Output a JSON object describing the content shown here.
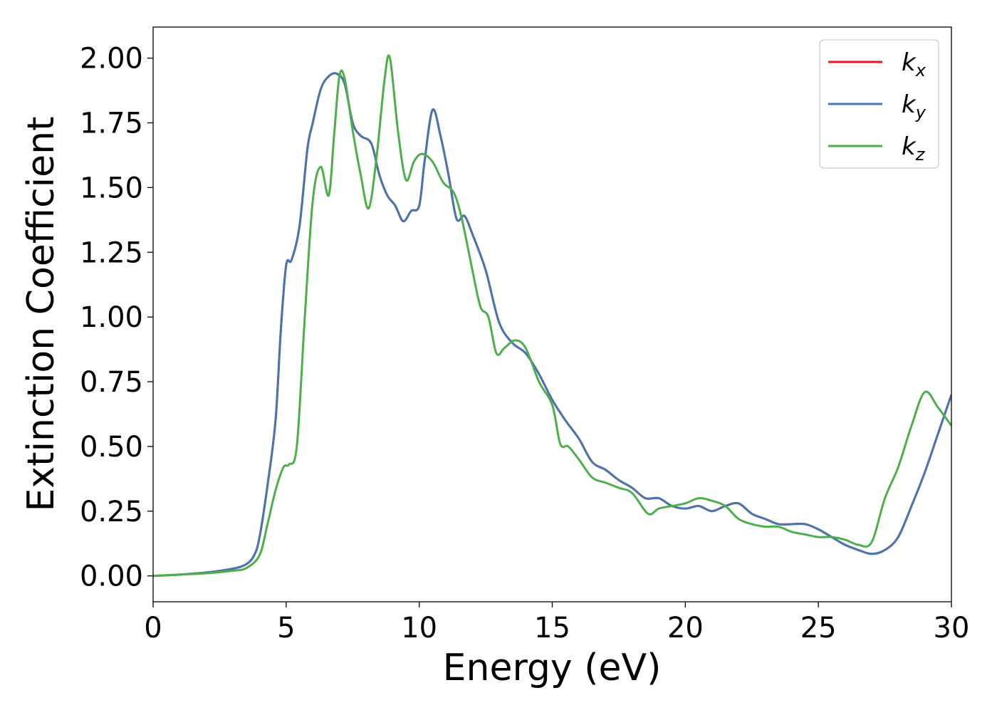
{
  "chart_data": {
    "type": "line",
    "title": "",
    "xlabel": "Energy (eV)",
    "ylabel": "Extinction Coefficient",
    "xlim": [
      0,
      30
    ],
    "ylim": [
      -0.1,
      2.12
    ],
    "x_ticks": [
      0,
      5,
      10,
      15,
      20,
      25,
      30
    ],
    "x_tick_labels": [
      "0",
      "5",
      "10",
      "15",
      "20",
      "25",
      "30"
    ],
    "y_ticks": [
      0,
      0.25,
      0.5,
      0.75,
      1.0,
      1.25,
      1.5,
      1.75,
      2.0
    ],
    "y_tick_labels": [
      "0.00",
      "0.25",
      "0.50",
      "0.75",
      "1.00",
      "1.25",
      "1.50",
      "1.75",
      "2.00"
    ],
    "grid": false,
    "legend_position": "top-right",
    "series": [
      {
        "name": "k",
        "subscript": "x",
        "color": "#e41a1c",
        "x": [
          0,
          1,
          2,
          3,
          3.5,
          3.8,
          4.0,
          4.3,
          4.6,
          4.8,
          5.0,
          5.2,
          5.5,
          5.8,
          6.0,
          6.3,
          6.6,
          6.9,
          7.2,
          7.5,
          7.8,
          8.2,
          8.5,
          8.8,
          9.1,
          9.4,
          9.7,
          10.0,
          10.2,
          10.5,
          10.8,
          11.1,
          11.4,
          11.7,
          12.0,
          12.5,
          13.0,
          13.5,
          14.0,
          14.5,
          15.0,
          15.5,
          16.0,
          16.5,
          17.0,
          17.5,
          18.0,
          18.5,
          19.0,
          19.5,
          20.0,
          20.5,
          21.0,
          21.5,
          22.0,
          22.5,
          23.0,
          23.5,
          24.0,
          24.5,
          25.0,
          25.5,
          26.0,
          26.5,
          27.0,
          27.5,
          28.0,
          28.5,
          29.0,
          29.5,
          30.0
        ],
        "y": [
          0,
          0.005,
          0.013,
          0.028,
          0.045,
          0.08,
          0.15,
          0.35,
          0.6,
          0.95,
          1.2,
          1.22,
          1.35,
          1.65,
          1.75,
          1.88,
          1.93,
          1.94,
          1.9,
          1.75,
          1.7,
          1.67,
          1.55,
          1.47,
          1.43,
          1.37,
          1.41,
          1.43,
          1.6,
          1.8,
          1.7,
          1.55,
          1.38,
          1.39,
          1.32,
          1.18,
          0.98,
          0.9,
          0.86,
          0.78,
          0.68,
          0.6,
          0.53,
          0.44,
          0.41,
          0.37,
          0.34,
          0.3,
          0.3,
          0.27,
          0.26,
          0.27,
          0.25,
          0.27,
          0.28,
          0.24,
          0.22,
          0.2,
          0.2,
          0.2,
          0.18,
          0.15,
          0.12,
          0.1,
          0.085,
          0.1,
          0.15,
          0.27,
          0.4,
          0.55,
          0.7
        ]
      },
      {
        "name": "k",
        "subscript": "y",
        "color": "#4677b0",
        "x": [
          0,
          1,
          2,
          3,
          3.5,
          3.8,
          4.0,
          4.3,
          4.6,
          4.8,
          5.0,
          5.2,
          5.5,
          5.8,
          6.0,
          6.3,
          6.6,
          6.9,
          7.2,
          7.5,
          7.8,
          8.2,
          8.5,
          8.8,
          9.1,
          9.4,
          9.7,
          10.0,
          10.2,
          10.5,
          10.8,
          11.1,
          11.4,
          11.7,
          12.0,
          12.5,
          13.0,
          13.5,
          14.0,
          14.5,
          15.0,
          15.5,
          16.0,
          16.5,
          17.0,
          17.5,
          18.0,
          18.5,
          19.0,
          19.5,
          20.0,
          20.5,
          21.0,
          21.5,
          22.0,
          22.5,
          23.0,
          23.5,
          24.0,
          24.5,
          25.0,
          25.5,
          26.0,
          26.5,
          27.0,
          27.5,
          28.0,
          28.5,
          29.0,
          29.5,
          30.0
        ],
        "y": [
          0,
          0.005,
          0.013,
          0.028,
          0.045,
          0.08,
          0.15,
          0.35,
          0.6,
          0.95,
          1.2,
          1.22,
          1.35,
          1.65,
          1.75,
          1.88,
          1.93,
          1.94,
          1.9,
          1.75,
          1.7,
          1.67,
          1.55,
          1.47,
          1.43,
          1.37,
          1.41,
          1.43,
          1.6,
          1.8,
          1.7,
          1.55,
          1.38,
          1.39,
          1.32,
          1.18,
          0.98,
          0.9,
          0.86,
          0.78,
          0.68,
          0.6,
          0.53,
          0.44,
          0.41,
          0.37,
          0.34,
          0.3,
          0.3,
          0.27,
          0.26,
          0.27,
          0.25,
          0.27,
          0.28,
          0.24,
          0.22,
          0.2,
          0.2,
          0.2,
          0.18,
          0.15,
          0.12,
          0.1,
          0.085,
          0.1,
          0.15,
          0.27,
          0.4,
          0.55,
          0.7
        ]
      },
      {
        "name": "k",
        "subscript": "z",
        "color": "#4daf4a",
        "x": [
          0,
          1,
          2,
          3,
          3.5,
          4.0,
          4.3,
          4.6,
          4.9,
          5.1,
          5.4,
          5.7,
          6.0,
          6.3,
          6.6,
          6.8,
          7.0,
          7.2,
          7.5,
          7.8,
          8.1,
          8.4,
          8.7,
          8.9,
          9.2,
          9.5,
          9.8,
          10.1,
          10.5,
          10.9,
          11.3,
          11.6,
          12.0,
          12.3,
          12.6,
          12.9,
          13.2,
          13.6,
          14.0,
          14.5,
          15.0,
          15.3,
          15.6,
          16.0,
          16.5,
          17.0,
          17.5,
          18.0,
          18.6,
          19.0,
          19.5,
          20.0,
          20.5,
          21.0,
          21.5,
          22.0,
          22.5,
          23.0,
          23.5,
          24.0,
          24.5,
          25.0,
          25.5,
          26.0,
          26.5,
          27.0,
          27.5,
          28.0,
          28.5,
          29.0,
          29.5,
          30.0
        ],
        "y": [
          0,
          0.005,
          0.01,
          0.02,
          0.03,
          0.08,
          0.2,
          0.33,
          0.42,
          0.43,
          0.5,
          1.0,
          1.45,
          1.58,
          1.47,
          1.7,
          1.93,
          1.92,
          1.72,
          1.55,
          1.42,
          1.62,
          1.92,
          2.0,
          1.72,
          1.53,
          1.6,
          1.63,
          1.6,
          1.52,
          1.48,
          1.38,
          1.18,
          1.04,
          1.0,
          0.86,
          0.88,
          0.91,
          0.88,
          0.75,
          0.66,
          0.51,
          0.5,
          0.45,
          0.38,
          0.36,
          0.34,
          0.32,
          0.24,
          0.26,
          0.27,
          0.28,
          0.3,
          0.29,
          0.27,
          0.22,
          0.2,
          0.19,
          0.19,
          0.17,
          0.16,
          0.15,
          0.15,
          0.14,
          0.12,
          0.13,
          0.3,
          0.42,
          0.58,
          0.71,
          0.65,
          0.58
        ]
      }
    ]
  }
}
